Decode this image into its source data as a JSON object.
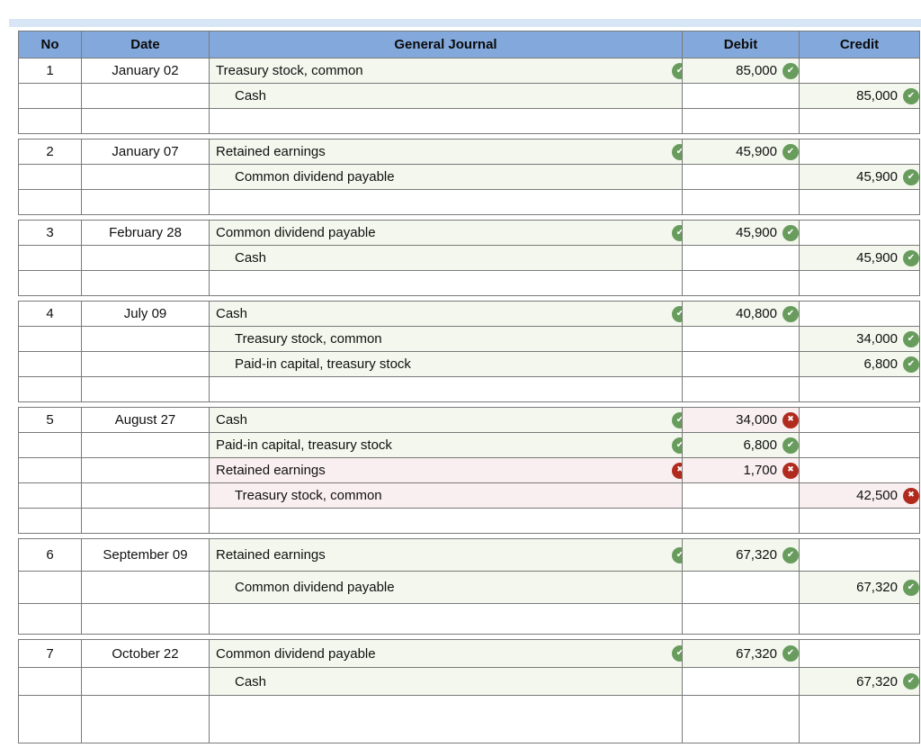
{
  "page": {
    "strip_color": "#d8e5f4"
  },
  "colors": {
    "header_blue": "#83a9dc",
    "correct_green": "#689c5d",
    "wrong_red": "#b12a1e",
    "correct_cell_bg": "#f3f7ed",
    "wrong_cell_bg": "#f9eff0",
    "border_gray": "#7a7a7a"
  },
  "table": {
    "columns": [
      "No",
      "Date",
      "General Journal",
      "Debit",
      "Credit"
    ]
  },
  "entries": [
    {
      "no": "1",
      "date": "January 02",
      "lines": [
        {
          "account": "Treasury stock, common",
          "indent": false,
          "account_icon": "check",
          "debit": "85,000",
          "debit_icon": "check",
          "credit": "",
          "credit_icon": ""
        },
        {
          "account": "Cash",
          "indent": true,
          "account_icon": "check",
          "debit": "",
          "debit_icon": "",
          "credit": "85,000",
          "credit_icon": "check"
        }
      ]
    },
    {
      "no": "2",
      "date": "January 07",
      "lines": [
        {
          "account": "Retained earnings",
          "indent": false,
          "account_icon": "check",
          "debit": "45,900",
          "debit_icon": "check",
          "credit": "",
          "credit_icon": ""
        },
        {
          "account": "Common dividend payable",
          "indent": true,
          "account_icon": "check",
          "debit": "",
          "debit_icon": "",
          "credit": "45,900",
          "credit_icon": "check"
        }
      ]
    },
    {
      "no": "3",
      "date": "February 28",
      "lines": [
        {
          "account": "Common dividend payable",
          "indent": false,
          "account_icon": "check",
          "debit": "45,900",
          "debit_icon": "check",
          "credit": "",
          "credit_icon": ""
        },
        {
          "account": "Cash",
          "indent": true,
          "account_icon": "check",
          "debit": "",
          "debit_icon": "",
          "credit": "45,900",
          "credit_icon": "check"
        }
      ]
    },
    {
      "no": "4",
      "date": "July 09",
      "lines": [
        {
          "account": "Cash",
          "indent": false,
          "account_icon": "check",
          "debit": "40,800",
          "debit_icon": "check",
          "credit": "",
          "credit_icon": ""
        },
        {
          "account": "Treasury stock, common",
          "indent": true,
          "account_icon": "check",
          "debit": "",
          "debit_icon": "",
          "credit": "34,000",
          "credit_icon": "check"
        },
        {
          "account": "Paid-in capital, treasury stock",
          "indent": true,
          "account_icon": "check",
          "debit": "",
          "debit_icon": "",
          "credit": "6,800",
          "credit_icon": "check"
        }
      ]
    },
    {
      "no": "5",
      "date": "August 27",
      "lines": [
        {
          "account": "Cash",
          "indent": false,
          "account_icon": "check",
          "debit": "34,000",
          "debit_icon": "cross",
          "credit": "",
          "credit_icon": ""
        },
        {
          "account": "Paid-in capital, treasury stock",
          "indent": false,
          "account_icon": "check",
          "debit": "6,800",
          "debit_icon": "check",
          "credit": "",
          "credit_icon": ""
        },
        {
          "account": "Retained earnings",
          "indent": false,
          "account_icon": "cross",
          "debit": "1,700",
          "debit_icon": "cross",
          "credit": "",
          "credit_icon": ""
        },
        {
          "account": "Treasury stock, common",
          "indent": true,
          "account_icon": "cross",
          "debit": "",
          "debit_icon": "",
          "credit": "42,500",
          "credit_icon": "cross"
        }
      ]
    },
    {
      "no": "6",
      "date": "September 09",
      "lines": [
        {
          "account": "Retained earnings",
          "indent": false,
          "account_icon": "check",
          "debit": "67,320",
          "debit_icon": "check",
          "credit": "",
          "credit_icon": ""
        },
        {
          "account": "Common dividend payable",
          "indent": true,
          "account_icon": "check",
          "debit": "",
          "debit_icon": "",
          "credit": "67,320",
          "credit_icon": "check"
        }
      ]
    },
    {
      "no": "7",
      "date": "October 22",
      "lines": [
        {
          "account": "Common dividend payable",
          "indent": false,
          "account_icon": "check",
          "debit": "67,320",
          "debit_icon": "check",
          "credit": "",
          "credit_icon": ""
        },
        {
          "account": "Cash",
          "indent": true,
          "account_icon": "check",
          "debit": "",
          "debit_icon": "",
          "credit": "67,320",
          "credit_icon": "check"
        }
      ]
    }
  ]
}
